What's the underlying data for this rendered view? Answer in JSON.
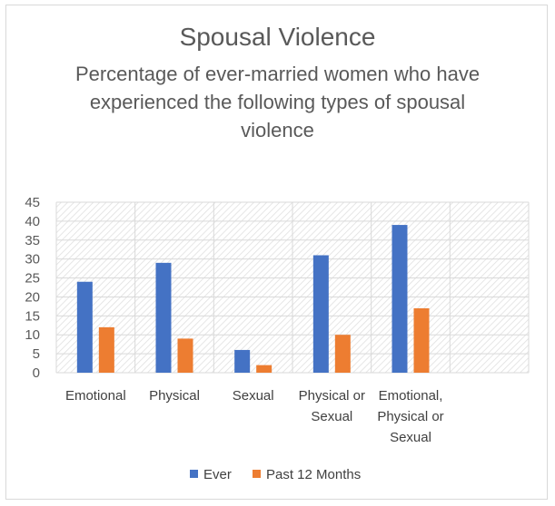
{
  "chart_data": {
    "type": "bar",
    "title": "Spousal Violence",
    "subtitle": "Percentage of ever-married women who have experienced the following types of spousal violence",
    "categories": [
      [
        "Emotional"
      ],
      [
        "Physical"
      ],
      [
        "Sexual"
      ],
      [
        "Physical or",
        "Sexual"
      ],
      [
        "Emotional,",
        "Physical or",
        "Sexual"
      ],
      [
        ""
      ]
    ],
    "series": [
      {
        "name": "Ever",
        "color": "#4472c4",
        "values": [
          24,
          29,
          6,
          31,
          39,
          null
        ]
      },
      {
        "name": "Past 12 Months",
        "color": "#ed7d31",
        "values": [
          12,
          9,
          2,
          10,
          17,
          null
        ]
      }
    ],
    "yticks": [
      "0",
      "5",
      "10",
      "15",
      "20",
      "25",
      "30",
      "35",
      "40",
      "45"
    ],
    "ylim": [
      0,
      45
    ],
    "grid": true,
    "legend_position": "bottom"
  }
}
